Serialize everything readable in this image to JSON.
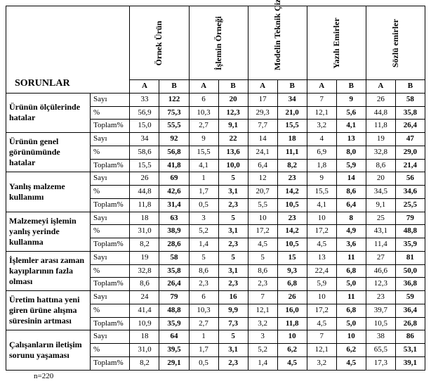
{
  "header_title": "SORUNLAR",
  "col_groups": [
    "Örnek Ürün",
    "İşlemin Örneği",
    "Modelin Teknik Çizimi",
    "Yazılı Emirler",
    "Sözlü emirler"
  ],
  "subcols": [
    "A",
    "B"
  ],
  "metrics": [
    "Sayı",
    "%",
    "Toplam%"
  ],
  "footer": "n=220",
  "rows": [
    {
      "label": "Ürünün ölçülerinde hatalar",
      "data": [
        [
          "33",
          "122",
          "6",
          "20",
          "17",
          "34",
          "7",
          "9",
          "26",
          "58"
        ],
        [
          "56,9",
          "75,3",
          "10,3",
          "12,3",
          "29,3",
          "21,0",
          "12,1",
          "5,6",
          "44,8",
          "35,8"
        ],
        [
          "15,0",
          "55,5",
          "2,7",
          "9,1",
          "7,7",
          "15,5",
          "3,2",
          "4,1",
          "11,8",
          "26,4"
        ]
      ]
    },
    {
      "label": "Ürünün genel görünümünde hatalar",
      "data": [
        [
          "34",
          "92",
          "9",
          "22",
          "14",
          "18",
          "4",
          "13",
          "19",
          "47"
        ],
        [
          "58,6",
          "56,8",
          "15,5",
          "13,6",
          "24,1",
          "11,1",
          "6,9",
          "8,0",
          "32,8",
          "29,0"
        ],
        [
          "15,5",
          "41,8",
          "4,1",
          "10,0",
          "6,4",
          "8,2",
          "1,8",
          "5,9",
          "8,6",
          "21,4"
        ]
      ]
    },
    {
      "label": "Yanlış malzeme kullanımı",
      "data": [
        [
          "26",
          "69",
          "1",
          "5",
          "12",
          "23",
          "9",
          "14",
          "20",
          "56"
        ],
        [
          "44,8",
          "42,6",
          "1,7",
          "3,1",
          "20,7",
          "14,2",
          "15,5",
          "8,6",
          "34,5",
          "34,6"
        ],
        [
          "11,8",
          "31,4",
          "0,5",
          "2,3",
          "5,5",
          "10,5",
          "4,1",
          "6,4",
          "9,1",
          "25,5"
        ]
      ]
    },
    {
      "label": "Malzemeyi işlemin yanlış yerinde kullanma",
      "data": [
        [
          "18",
          "63",
          "3",
          "5",
          "10",
          "23",
          "10",
          "8",
          "25",
          "79"
        ],
        [
          "31,0",
          "38,9",
          "5,2",
          "3,1",
          "17,2",
          "14,2",
          "17,2",
          "4,9",
          "43,1",
          "48,8"
        ],
        [
          "8,2",
          "28,6",
          "1,4",
          "2,3",
          "4,5",
          "10,5",
          "4,5",
          "3,6",
          "11,4",
          "35,9"
        ]
      ]
    },
    {
      "label": "İşlemler arası zaman kayıplarının fazla olması",
      "data": [
        [
          "19",
          "58",
          "5",
          "5",
          "5",
          "15",
          "13",
          "11",
          "27",
          "81"
        ],
        [
          "32,8",
          "35,8",
          "8,6",
          "3,1",
          "8,6",
          "9,3",
          "22,4",
          "6,8",
          "46,6",
          "50,0"
        ],
        [
          "8,6",
          "26,4",
          "2,3",
          "2,3",
          "2,3",
          "6,8",
          "5,9",
          "5,0",
          "12,3",
          "36,8"
        ]
      ]
    },
    {
      "label": "Üretim hattına yeni giren ürüne alışma süresinin artması",
      "data": [
        [
          "24",
          "79",
          "6",
          "16",
          "7",
          "26",
          "10",
          "11",
          "23",
          "59"
        ],
        [
          "41,4",
          "48,8",
          "10,3",
          "9,9",
          "12,1",
          "16,0",
          "17,2",
          "6,8",
          "39,7",
          "36,4"
        ],
        [
          "10,9",
          "35,9",
          "2,7",
          "7,3",
          "3,2",
          "11,8",
          "4,5",
          "5,0",
          "10,5",
          "26,8"
        ]
      ]
    },
    {
      "label": "Çalışanların iletişim sorunu yaşaması",
      "data": [
        [
          "18",
          "64",
          "1",
          "5",
          "3",
          "10",
          "7",
          "10",
          "38",
          "86"
        ],
        [
          "31,0",
          "39,5",
          "1,7",
          "3,1",
          "5,2",
          "6,2",
          "12,1",
          "6,2",
          "65,5",
          "53,1"
        ],
        [
          "8,2",
          "29,1",
          "0,5",
          "2,3",
          "1,4",
          "4,5",
          "3,2",
          "4,5",
          "17,3",
          "39,1"
        ]
      ]
    }
  ]
}
